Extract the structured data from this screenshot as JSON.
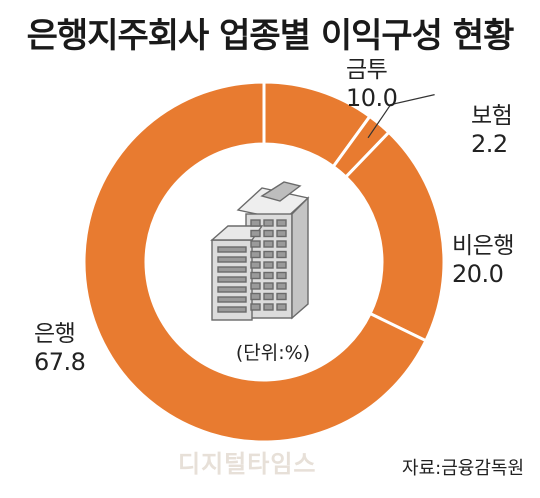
{
  "title": "은행지주회사 업종별 이익구성 현황",
  "unit_label": "(단위:%)",
  "source": "자료:금융감독원",
  "watermark": "디지털타임스",
  "colors": {
    "slice": "#E87B30",
    "separator": "#ffffff",
    "building_fill": "#dcdcdc",
    "building_stroke": "#6a6a6a"
  },
  "icons": {
    "center": "building-icon"
  },
  "chart_data": {
    "type": "pie",
    "title": "은행지주회사 업종별 이익구성 현황",
    "unit": "%",
    "donut": true,
    "start": "top",
    "direction": "clockwise",
    "categories": [
      "금투",
      "보험",
      "비은행",
      "은행"
    ],
    "values": [
      10.0,
      2.2,
      20.0,
      67.8
    ],
    "value_labels": [
      "10.0",
      "2.2",
      "20.0",
      "67.8"
    ]
  }
}
